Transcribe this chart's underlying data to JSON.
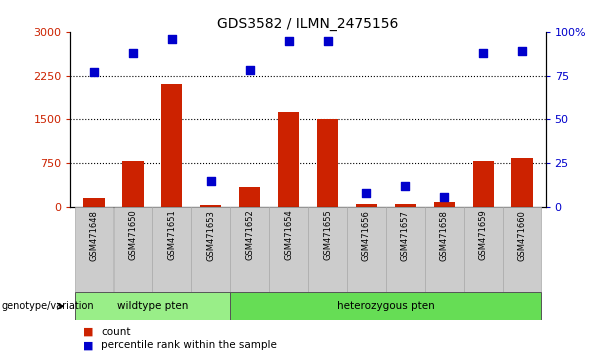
{
  "title": "GDS3582 / ILMN_2475156",
  "samples": [
    "GSM471648",
    "GSM471650",
    "GSM471651",
    "GSM471653",
    "GSM471652",
    "GSM471654",
    "GSM471655",
    "GSM471656",
    "GSM471657",
    "GSM471658",
    "GSM471659",
    "GSM471660"
  ],
  "counts": [
    160,
    790,
    2100,
    30,
    350,
    1620,
    1510,
    50,
    55,
    85,
    790,
    840
  ],
  "percentile_ranks": [
    77,
    88,
    96,
    15,
    78,
    95,
    95,
    8,
    12,
    6,
    88,
    89
  ],
  "wildtype_indices": [
    0,
    1,
    2,
    3
  ],
  "heterozygous_indices": [
    4,
    5,
    6,
    7,
    8,
    9,
    10,
    11
  ],
  "ylim_left": [
    0,
    3000
  ],
  "ylim_right": [
    0,
    100
  ],
  "yticks_left": [
    0,
    750,
    1500,
    2250,
    3000
  ],
  "yticks_right": [
    0,
    25,
    50,
    75,
    100
  ],
  "bar_color": "#cc2200",
  "dot_color": "#0000cc",
  "wildtype_color": "#99ee88",
  "heterozygous_color": "#66dd55",
  "label_count": "count",
  "label_percentile": "percentile rank within the sample",
  "genotype_label": "genotype/variation"
}
